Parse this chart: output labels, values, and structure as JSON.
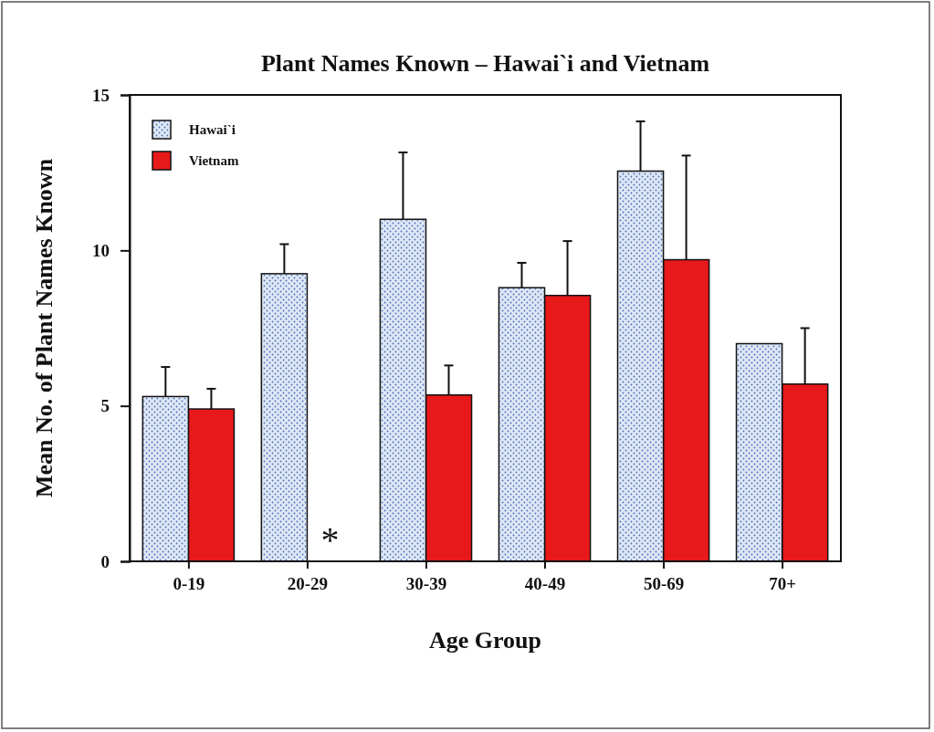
{
  "chart_data": {
    "type": "bar",
    "title": "Plant Names Known – Hawai`i and Vietnam",
    "xlabel": "Age Group",
    "ylabel": "Mean No. of Plant Names Known",
    "categories": [
      "0-19",
      "20-29",
      "30-39",
      "40-49",
      "50-69",
      "70+"
    ],
    "series": [
      {
        "name": "Hawai`i",
        "color": "#dfe7f5",
        "values": [
          5.3,
          9.25,
          11.0,
          8.8,
          12.55,
          7.0
        ],
        "errors": [
          [
            5.3,
            6.25
          ],
          [
            9.25,
            10.2
          ],
          [
            11.0,
            13.15
          ],
          [
            8.8,
            9.6
          ],
          [
            12.55,
            14.15
          ],
          null
        ]
      },
      {
        "name": "Vietnam",
        "color": "#e8191b",
        "values": [
          4.9,
          null,
          5.35,
          8.55,
          9.7,
          5.7
        ],
        "errors": [
          [
            4.9,
            5.55
          ],
          null,
          [
            5.35,
            6.3
          ],
          [
            8.55,
            10.3
          ],
          [
            9.7,
            13.05
          ],
          [
            5.7,
            7.5
          ]
        ]
      }
    ],
    "ylim": [
      0,
      15
    ],
    "yticks": [
      0,
      5,
      10,
      15
    ],
    "grid": false,
    "legend": "top left",
    "annotations": [
      {
        "text": "*",
        "x": "20-29",
        "y": 0.7
      }
    ]
  }
}
